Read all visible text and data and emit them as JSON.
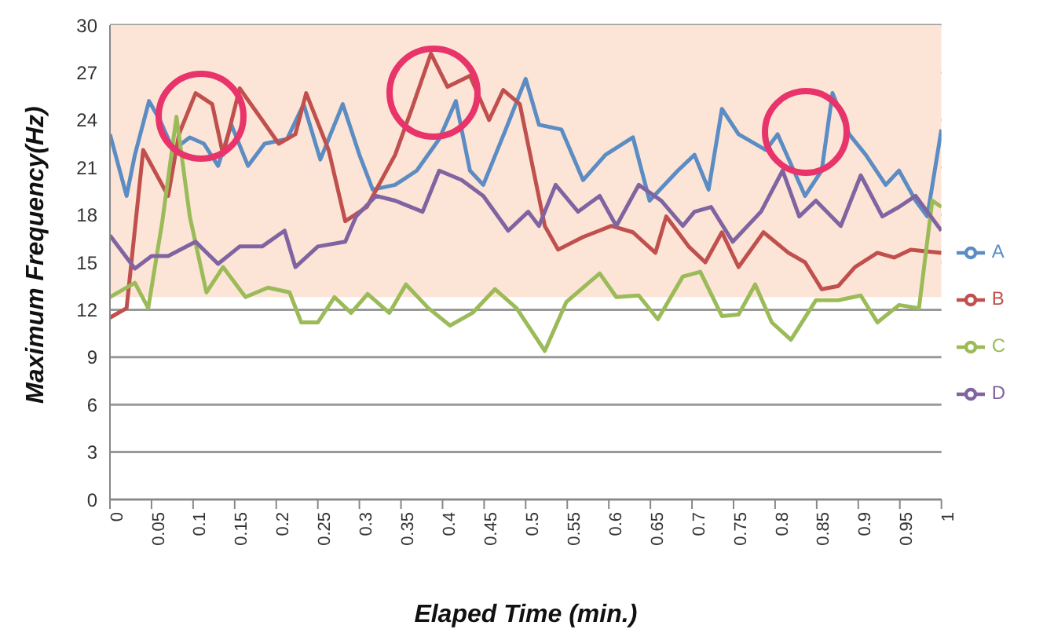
{
  "chart_data": {
    "type": "line",
    "xlabel": "Elaped Time (min.)",
    "ylabel": "Maximum Frequency(Hz)",
    "xlim": [
      0,
      1
    ],
    "xticks": [
      0,
      0.05,
      0.1,
      0.15,
      0.2,
      0.25,
      0.3,
      0.35,
      0.4,
      0.45,
      0.5,
      0.55,
      0.6,
      0.65,
      0.7,
      0.75,
      0.8,
      0.85,
      0.9,
      0.95,
      1
    ],
    "ylim": [
      0,
      30
    ],
    "yticks": [
      0,
      3,
      6,
      9,
      12,
      15,
      18,
      21,
      24,
      27,
      30
    ],
    "grid": "y",
    "legend": "right",
    "marker": "none",
    "line_style": "solid",
    "bands": [
      {
        "axis": "y",
        "from": 12.8,
        "to": 30,
        "color": "#fce4d6"
      }
    ],
    "series": [
      {
        "name": "A",
        "color": "#5b8cc4",
        "x": [
          0,
          0.02,
          0.03,
          0.047,
          0.06,
          0.076,
          0.096,
          0.113,
          0.13,
          0.146,
          0.166,
          0.186,
          0.213,
          0.233,
          0.253,
          0.28,
          0.3,
          0.316,
          0.343,
          0.369,
          0.396,
          0.416,
          0.433,
          0.449,
          0.476,
          0.5,
          0.516,
          0.543,
          0.569,
          0.596,
          0.629,
          0.649,
          0.683,
          0.703,
          0.72,
          0.736,
          0.756,
          0.789,
          0.803,
          0.836,
          0.856,
          0.869,
          0.889,
          0.909,
          0.933,
          0.949,
          0.969,
          0.983,
          1
        ],
        "values": [
          23.1,
          19.2,
          21.8,
          25.2,
          24,
          22.1,
          22.9,
          22.5,
          21.1,
          23.7,
          21.1,
          22.5,
          22.8,
          25,
          21.5,
          25,
          21.8,
          19.6,
          19.9,
          20.8,
          22.8,
          25.2,
          20.8,
          19.9,
          23.4,
          26.6,
          23.7,
          23.4,
          20.2,
          21.8,
          22.9,
          18.9,
          20.8,
          21.8,
          19.6,
          24.7,
          23.1,
          22.1,
          23.1,
          19.2,
          20.8,
          25.7,
          23.1,
          21.8,
          19.9,
          20.8,
          18.9,
          17.9,
          23.4
        ]
      },
      {
        "name": "B",
        "color": "#c0504d",
        "x": [
          0,
          0.02,
          0.04,
          0.07,
          0.083,
          0.103,
          0.123,
          0.136,
          0.156,
          0.183,
          0.203,
          0.223,
          0.236,
          0.263,
          0.283,
          0.309,
          0.343,
          0.363,
          0.386,
          0.406,
          0.433,
          0.456,
          0.473,
          0.493,
          0.523,
          0.539,
          0.569,
          0.603,
          0.629,
          0.656,
          0.669,
          0.696,
          0.716,
          0.736,
          0.756,
          0.786,
          0.816,
          0.836,
          0.856,
          0.876,
          0.896,
          0.923,
          0.943,
          0.963,
          1
        ],
        "values": [
          11.5,
          12.1,
          22.1,
          19.2,
          23.1,
          25.7,
          25,
          21.8,
          26,
          24,
          22.5,
          23.1,
          25.7,
          22.1,
          17.6,
          18.5,
          21.8,
          24.7,
          28.2,
          26.1,
          26.8,
          24,
          25.9,
          25,
          17.3,
          15.8,
          16.6,
          17.3,
          16.9,
          15.6,
          17.9,
          16,
          15,
          16.9,
          14.7,
          16.9,
          15.6,
          15,
          13.3,
          13.5,
          14.7,
          15.6,
          15.3,
          15.8,
          15.6
        ]
      },
      {
        "name": "C",
        "color": "#9bbb59",
        "x": [
          0,
          0.03,
          0.046,
          0.063,
          0.08,
          0.096,
          0.116,
          0.136,
          0.163,
          0.19,
          0.216,
          0.23,
          0.25,
          0.27,
          0.29,
          0.31,
          0.336,
          0.356,
          0.383,
          0.409,
          0.436,
          0.463,
          0.489,
          0.523,
          0.549,
          0.589,
          0.609,
          0.636,
          0.659,
          0.689,
          0.71,
          0.736,
          0.756,
          0.776,
          0.796,
          0.819,
          0.849,
          0.876,
          0.903,
          0.923,
          0.949,
          0.973,
          0.989,
          1
        ],
        "values": [
          12.8,
          13.7,
          12.1,
          17.6,
          24.2,
          17.9,
          13.1,
          14.7,
          12.8,
          13.4,
          13.1,
          11.2,
          11.2,
          12.8,
          11.8,
          13,
          11.8,
          13.6,
          12.1,
          11,
          11.8,
          13.3,
          12.1,
          9.4,
          12.5,
          14.3,
          12.8,
          12.9,
          11.4,
          14.1,
          14.4,
          11.6,
          11.7,
          13.6,
          11.2,
          10.1,
          12.6,
          12.6,
          12.9,
          11.2,
          12.3,
          12.1,
          18.9,
          18.5
        ]
      },
      {
        "name": "D",
        "color": "#8064a2",
        "x": [
          0,
          0.03,
          0.05,
          0.07,
          0.103,
          0.13,
          0.156,
          0.183,
          0.21,
          0.223,
          0.25,
          0.283,
          0.296,
          0.32,
          0.343,
          0.376,
          0.396,
          0.423,
          0.449,
          0.479,
          0.503,
          0.516,
          0.536,
          0.563,
          0.589,
          0.609,
          0.636,
          0.663,
          0.689,
          0.703,
          0.723,
          0.749,
          0.783,
          0.809,
          0.829,
          0.849,
          0.879,
          0.903,
          0.929,
          0.949,
          0.969,
          1
        ],
        "values": [
          16.7,
          14.6,
          15.4,
          15.4,
          16.3,
          14.9,
          16,
          16,
          17,
          14.7,
          16,
          16.3,
          17.9,
          19.2,
          18.9,
          18.2,
          20.8,
          20.2,
          19.2,
          17,
          18.2,
          17.3,
          19.9,
          18.2,
          19.2,
          17.3,
          19.9,
          18.9,
          17.3,
          18.2,
          18.5,
          16.3,
          18.2,
          20.8,
          17.9,
          18.9,
          17.3,
          20.5,
          17.9,
          18.5,
          19.2,
          17
        ]
      }
    ]
  }
}
